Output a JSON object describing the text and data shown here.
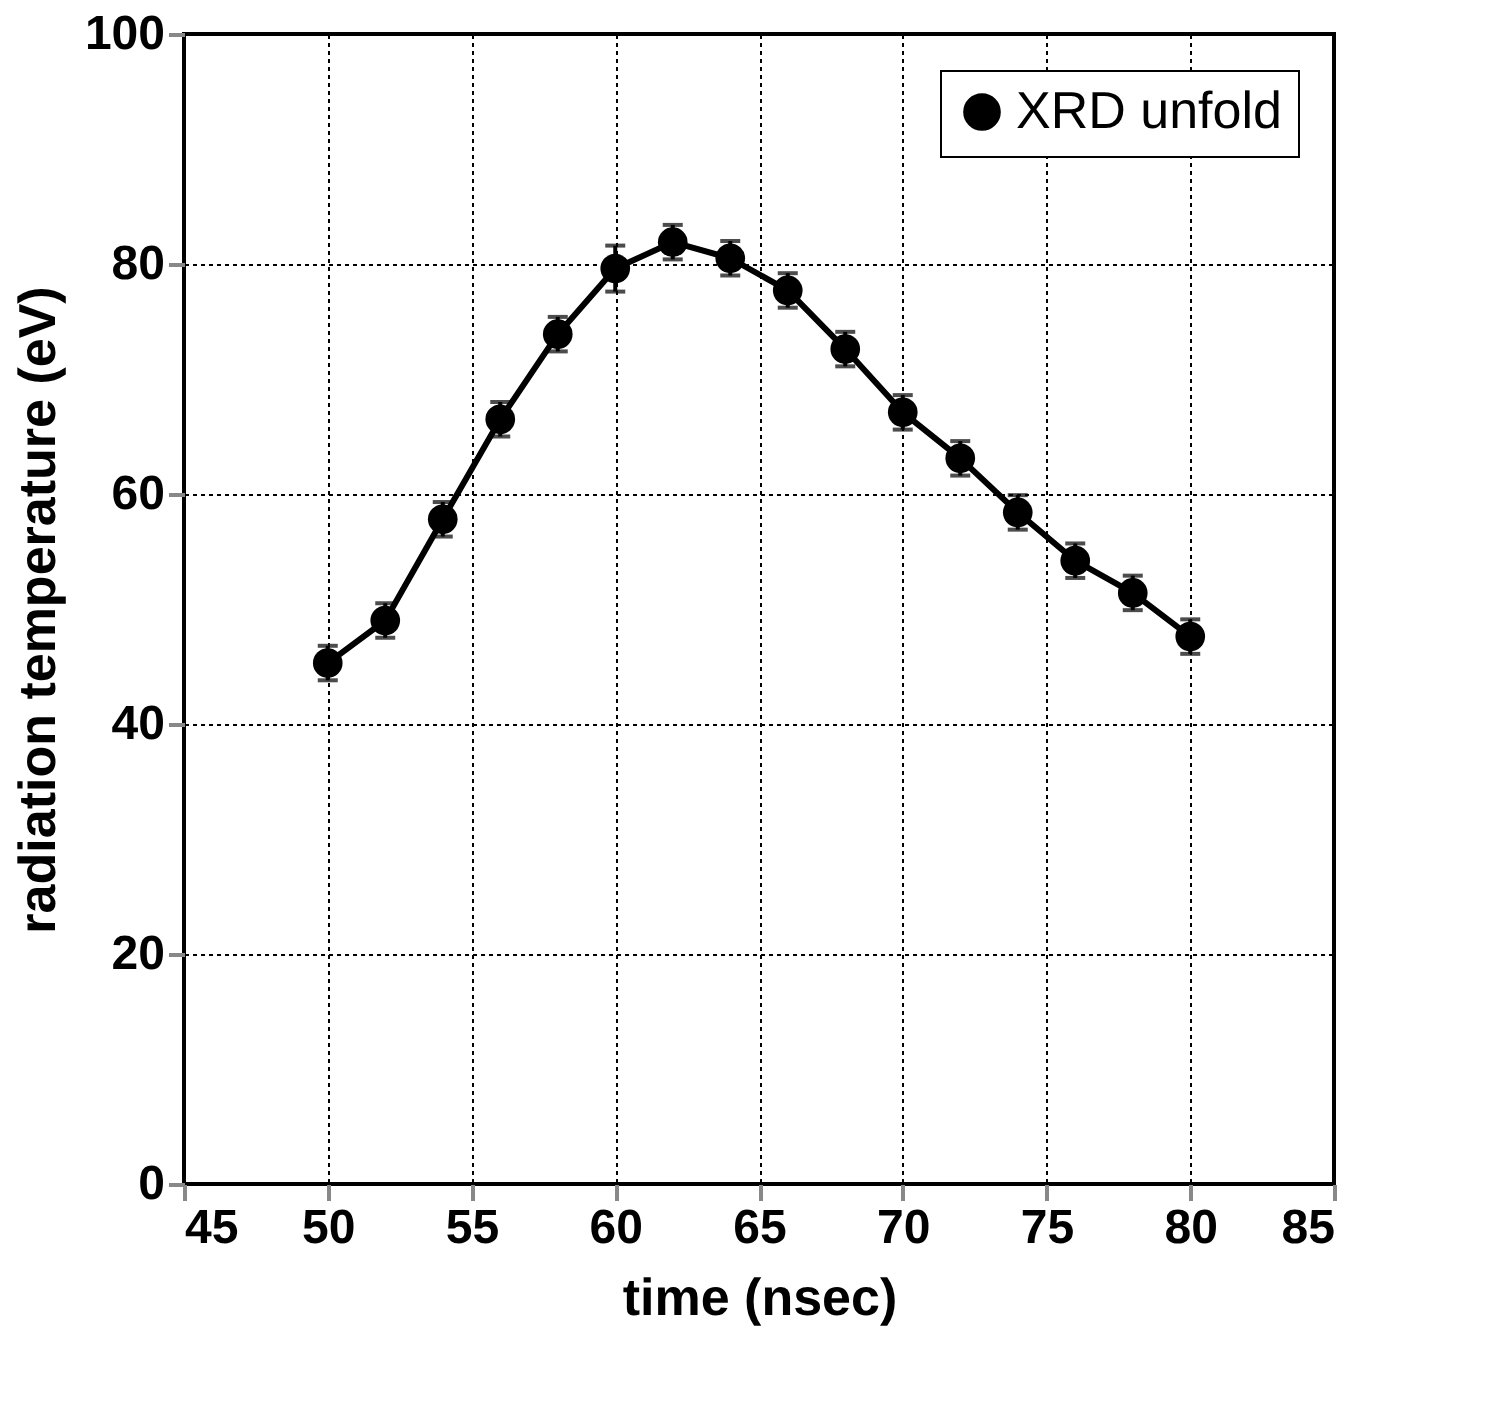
{
  "chart_data": {
    "type": "line",
    "xlabel": "time (nsec)",
    "ylabel": "radiation temperature (eV)",
    "xlim": [
      45,
      85
    ],
    "xticks": [
      45,
      50,
      55,
      60,
      65,
      70,
      75,
      80,
      85
    ],
    "ylim": [
      0,
      100
    ],
    "yticks": [
      0,
      20,
      40,
      60,
      80,
      100
    ],
    "grid": true,
    "legend": "top right",
    "marker": "circle",
    "line_style": "solid",
    "series": [
      {
        "name": "XRD unfold",
        "color": "#000000",
        "x": [
          50,
          52,
          54,
          56,
          58,
          60,
          62,
          64,
          66,
          68,
          70,
          72,
          74,
          76,
          78,
          80
        ],
        "values": [
          45.3,
          49.0,
          57.8,
          66.5,
          73.9,
          79.6,
          81.9,
          80.5,
          77.7,
          72.6,
          67.1,
          63.1,
          58.4,
          54.2,
          51.4,
          47.6
        ],
        "errors": [
          1.5,
          1.5,
          1.5,
          1.5,
          1.5,
          2,
          1.5,
          1.5,
          1.5,
          1.5,
          1.5,
          1.5,
          1.5,
          1.5,
          1.5,
          1.5
        ]
      }
    ]
  }
}
